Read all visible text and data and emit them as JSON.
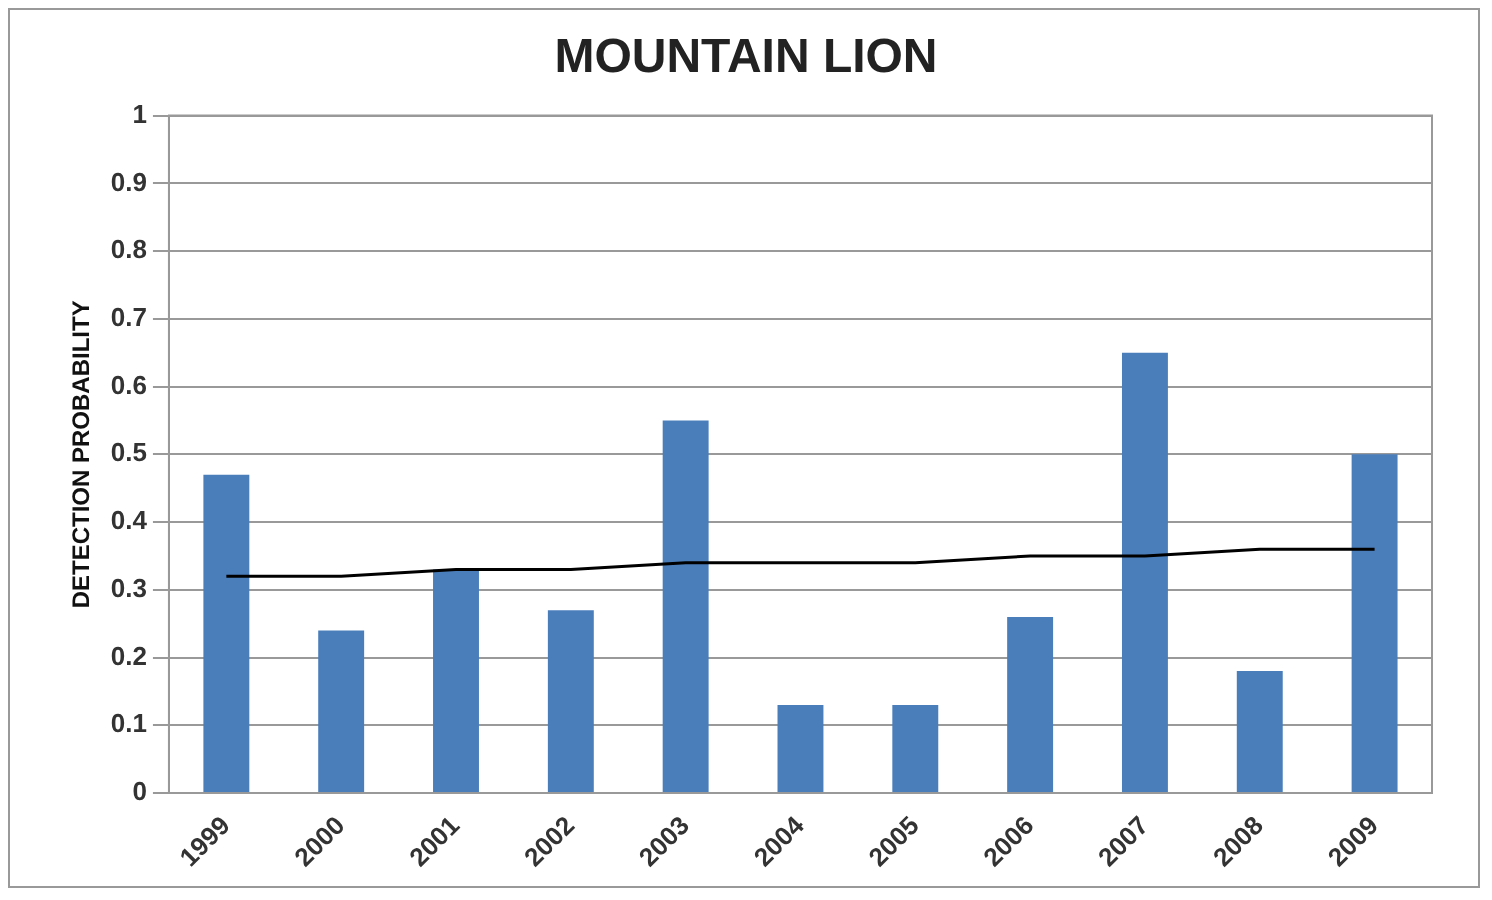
{
  "chart_data": {
    "type": "bar",
    "title": "MOUNTAIN LION",
    "ylabel": "DETECTION PROBABILITY",
    "categories": [
      "1999",
      "2000",
      "2001",
      "2002",
      "2003",
      "2004",
      "2005",
      "2006",
      "2007",
      "2008",
      "2009"
    ],
    "series": [
      {
        "color": "#4a7ebb",
        "values": [
          0.47,
          0.24,
          0.33,
          0.27,
          0.55,
          0.13,
          0.13,
          0.26,
          0.65,
          0.18,
          0.5
        ]
      },
      {
        "type": "line",
        "color": "#000000",
        "values": [
          0.32,
          0.32,
          0.33,
          0.33,
          0.34,
          0.34,
          0.34,
          0.35,
          0.35,
          0.36,
          0.36
        ]
      }
    ],
    "ylim": [
      0,
      1
    ],
    "yticks": [
      0,
      0.1,
      0.2,
      0.3,
      0.4,
      0.5,
      0.6,
      0.7,
      0.8,
      0.9,
      1
    ],
    "grid": "y",
    "legend": false,
    "marker": "none"
  }
}
